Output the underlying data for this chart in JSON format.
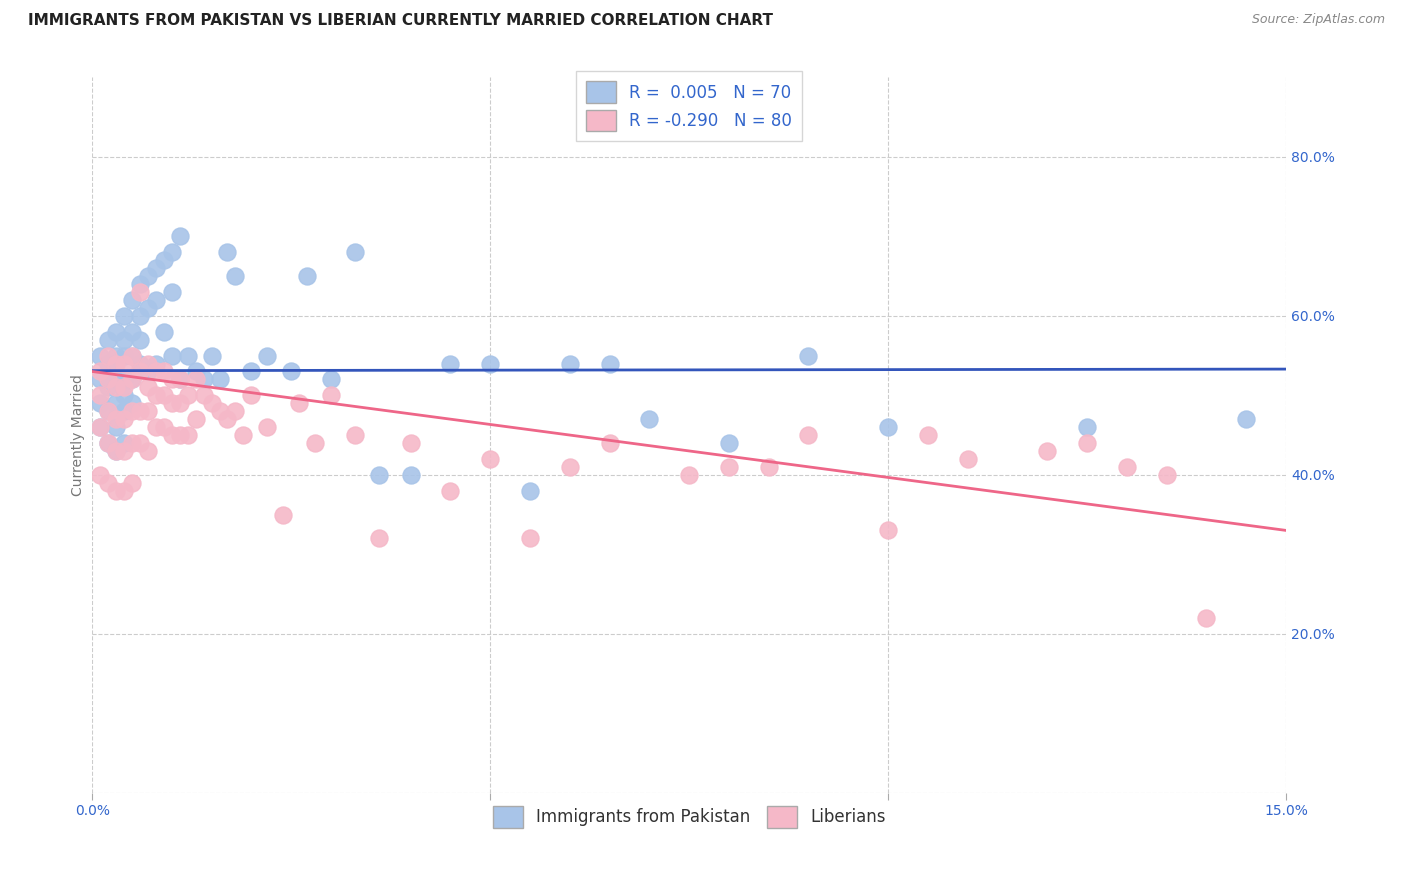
{
  "title": "IMMIGRANTS FROM PAKISTAN VS LIBERIAN CURRENTLY MARRIED CORRELATION CHART",
  "source": "Source: ZipAtlas.com",
  "ylabel_label": "Currently Married",
  "x_min": 0.0,
  "x_max": 0.15,
  "y_min": 0.0,
  "y_max": 0.9,
  "blue_color": "#A8C4E8",
  "pink_color": "#F5B8C8",
  "blue_line_color": "#3355BB",
  "pink_line_color": "#EE6688",
  "R_blue": 0.005,
  "N_blue": 70,
  "R_pink": -0.29,
  "N_pink": 80,
  "legend_label_blue": "Immigrants from Pakistan",
  "legend_label_pink": "Liberians",
  "title_fontsize": 11,
  "axis_label_fontsize": 10,
  "tick_fontsize": 10,
  "legend_fontsize": 12,
  "blue_line_y0": 0.531,
  "blue_line_y1": 0.533,
  "pink_line_y0": 0.53,
  "pink_line_y1": 0.33,
  "blue_scatter_x": [
    0.001,
    0.001,
    0.001,
    0.001,
    0.002,
    0.002,
    0.002,
    0.002,
    0.002,
    0.003,
    0.003,
    0.003,
    0.003,
    0.003,
    0.003,
    0.004,
    0.004,
    0.004,
    0.004,
    0.004,
    0.004,
    0.004,
    0.005,
    0.005,
    0.005,
    0.005,
    0.005,
    0.006,
    0.006,
    0.006,
    0.006,
    0.007,
    0.007,
    0.007,
    0.008,
    0.008,
    0.008,
    0.009,
    0.009,
    0.01,
    0.01,
    0.01,
    0.011,
    0.011,
    0.012,
    0.013,
    0.014,
    0.015,
    0.016,
    0.017,
    0.018,
    0.02,
    0.022,
    0.025,
    0.027,
    0.03,
    0.033,
    0.036,
    0.04,
    0.045,
    0.05,
    0.055,
    0.06,
    0.065,
    0.07,
    0.08,
    0.09,
    0.1,
    0.125,
    0.145
  ],
  "blue_scatter_y": [
    0.55,
    0.52,
    0.49,
    0.46,
    0.57,
    0.54,
    0.51,
    0.48,
    0.44,
    0.58,
    0.55,
    0.52,
    0.49,
    0.46,
    0.43,
    0.6,
    0.57,
    0.55,
    0.52,
    0.5,
    0.48,
    0.44,
    0.62,
    0.58,
    0.55,
    0.52,
    0.49,
    0.64,
    0.6,
    0.57,
    0.54,
    0.65,
    0.61,
    0.53,
    0.66,
    0.62,
    0.54,
    0.67,
    0.58,
    0.68,
    0.63,
    0.55,
    0.7,
    0.52,
    0.55,
    0.53,
    0.52,
    0.55,
    0.52,
    0.68,
    0.65,
    0.53,
    0.55,
    0.53,
    0.65,
    0.52,
    0.68,
    0.4,
    0.4,
    0.54,
    0.54,
    0.38,
    0.54,
    0.54,
    0.47,
    0.44,
    0.55,
    0.46,
    0.46,
    0.47
  ],
  "pink_scatter_x": [
    0.001,
    0.001,
    0.001,
    0.001,
    0.002,
    0.002,
    0.002,
    0.002,
    0.002,
    0.003,
    0.003,
    0.003,
    0.003,
    0.003,
    0.004,
    0.004,
    0.004,
    0.004,
    0.004,
    0.005,
    0.005,
    0.005,
    0.005,
    0.005,
    0.006,
    0.006,
    0.006,
    0.006,
    0.007,
    0.007,
    0.007,
    0.007,
    0.008,
    0.008,
    0.008,
    0.009,
    0.009,
    0.009,
    0.01,
    0.01,
    0.01,
    0.011,
    0.011,
    0.011,
    0.012,
    0.012,
    0.013,
    0.013,
    0.014,
    0.015,
    0.016,
    0.017,
    0.018,
    0.019,
    0.02,
    0.022,
    0.024,
    0.026,
    0.028,
    0.03,
    0.033,
    0.036,
    0.04,
    0.045,
    0.05,
    0.055,
    0.06,
    0.065,
    0.075,
    0.08,
    0.085,
    0.09,
    0.1,
    0.105,
    0.11,
    0.12,
    0.125,
    0.13,
    0.135,
    0.14
  ],
  "pink_scatter_y": [
    0.53,
    0.5,
    0.46,
    0.4,
    0.55,
    0.52,
    0.48,
    0.44,
    0.39,
    0.54,
    0.51,
    0.47,
    0.43,
    0.38,
    0.54,
    0.51,
    0.47,
    0.43,
    0.38,
    0.55,
    0.52,
    0.48,
    0.44,
    0.39,
    0.63,
    0.53,
    0.48,
    0.44,
    0.54,
    0.51,
    0.48,
    0.43,
    0.53,
    0.5,
    0.46,
    0.53,
    0.5,
    0.46,
    0.52,
    0.49,
    0.45,
    0.52,
    0.49,
    0.45,
    0.5,
    0.45,
    0.52,
    0.47,
    0.5,
    0.49,
    0.48,
    0.47,
    0.48,
    0.45,
    0.5,
    0.46,
    0.35,
    0.49,
    0.44,
    0.5,
    0.45,
    0.32,
    0.44,
    0.38,
    0.42,
    0.32,
    0.41,
    0.44,
    0.4,
    0.41,
    0.41,
    0.45,
    0.33,
    0.45,
    0.42,
    0.43,
    0.44,
    0.41,
    0.4,
    0.22
  ]
}
